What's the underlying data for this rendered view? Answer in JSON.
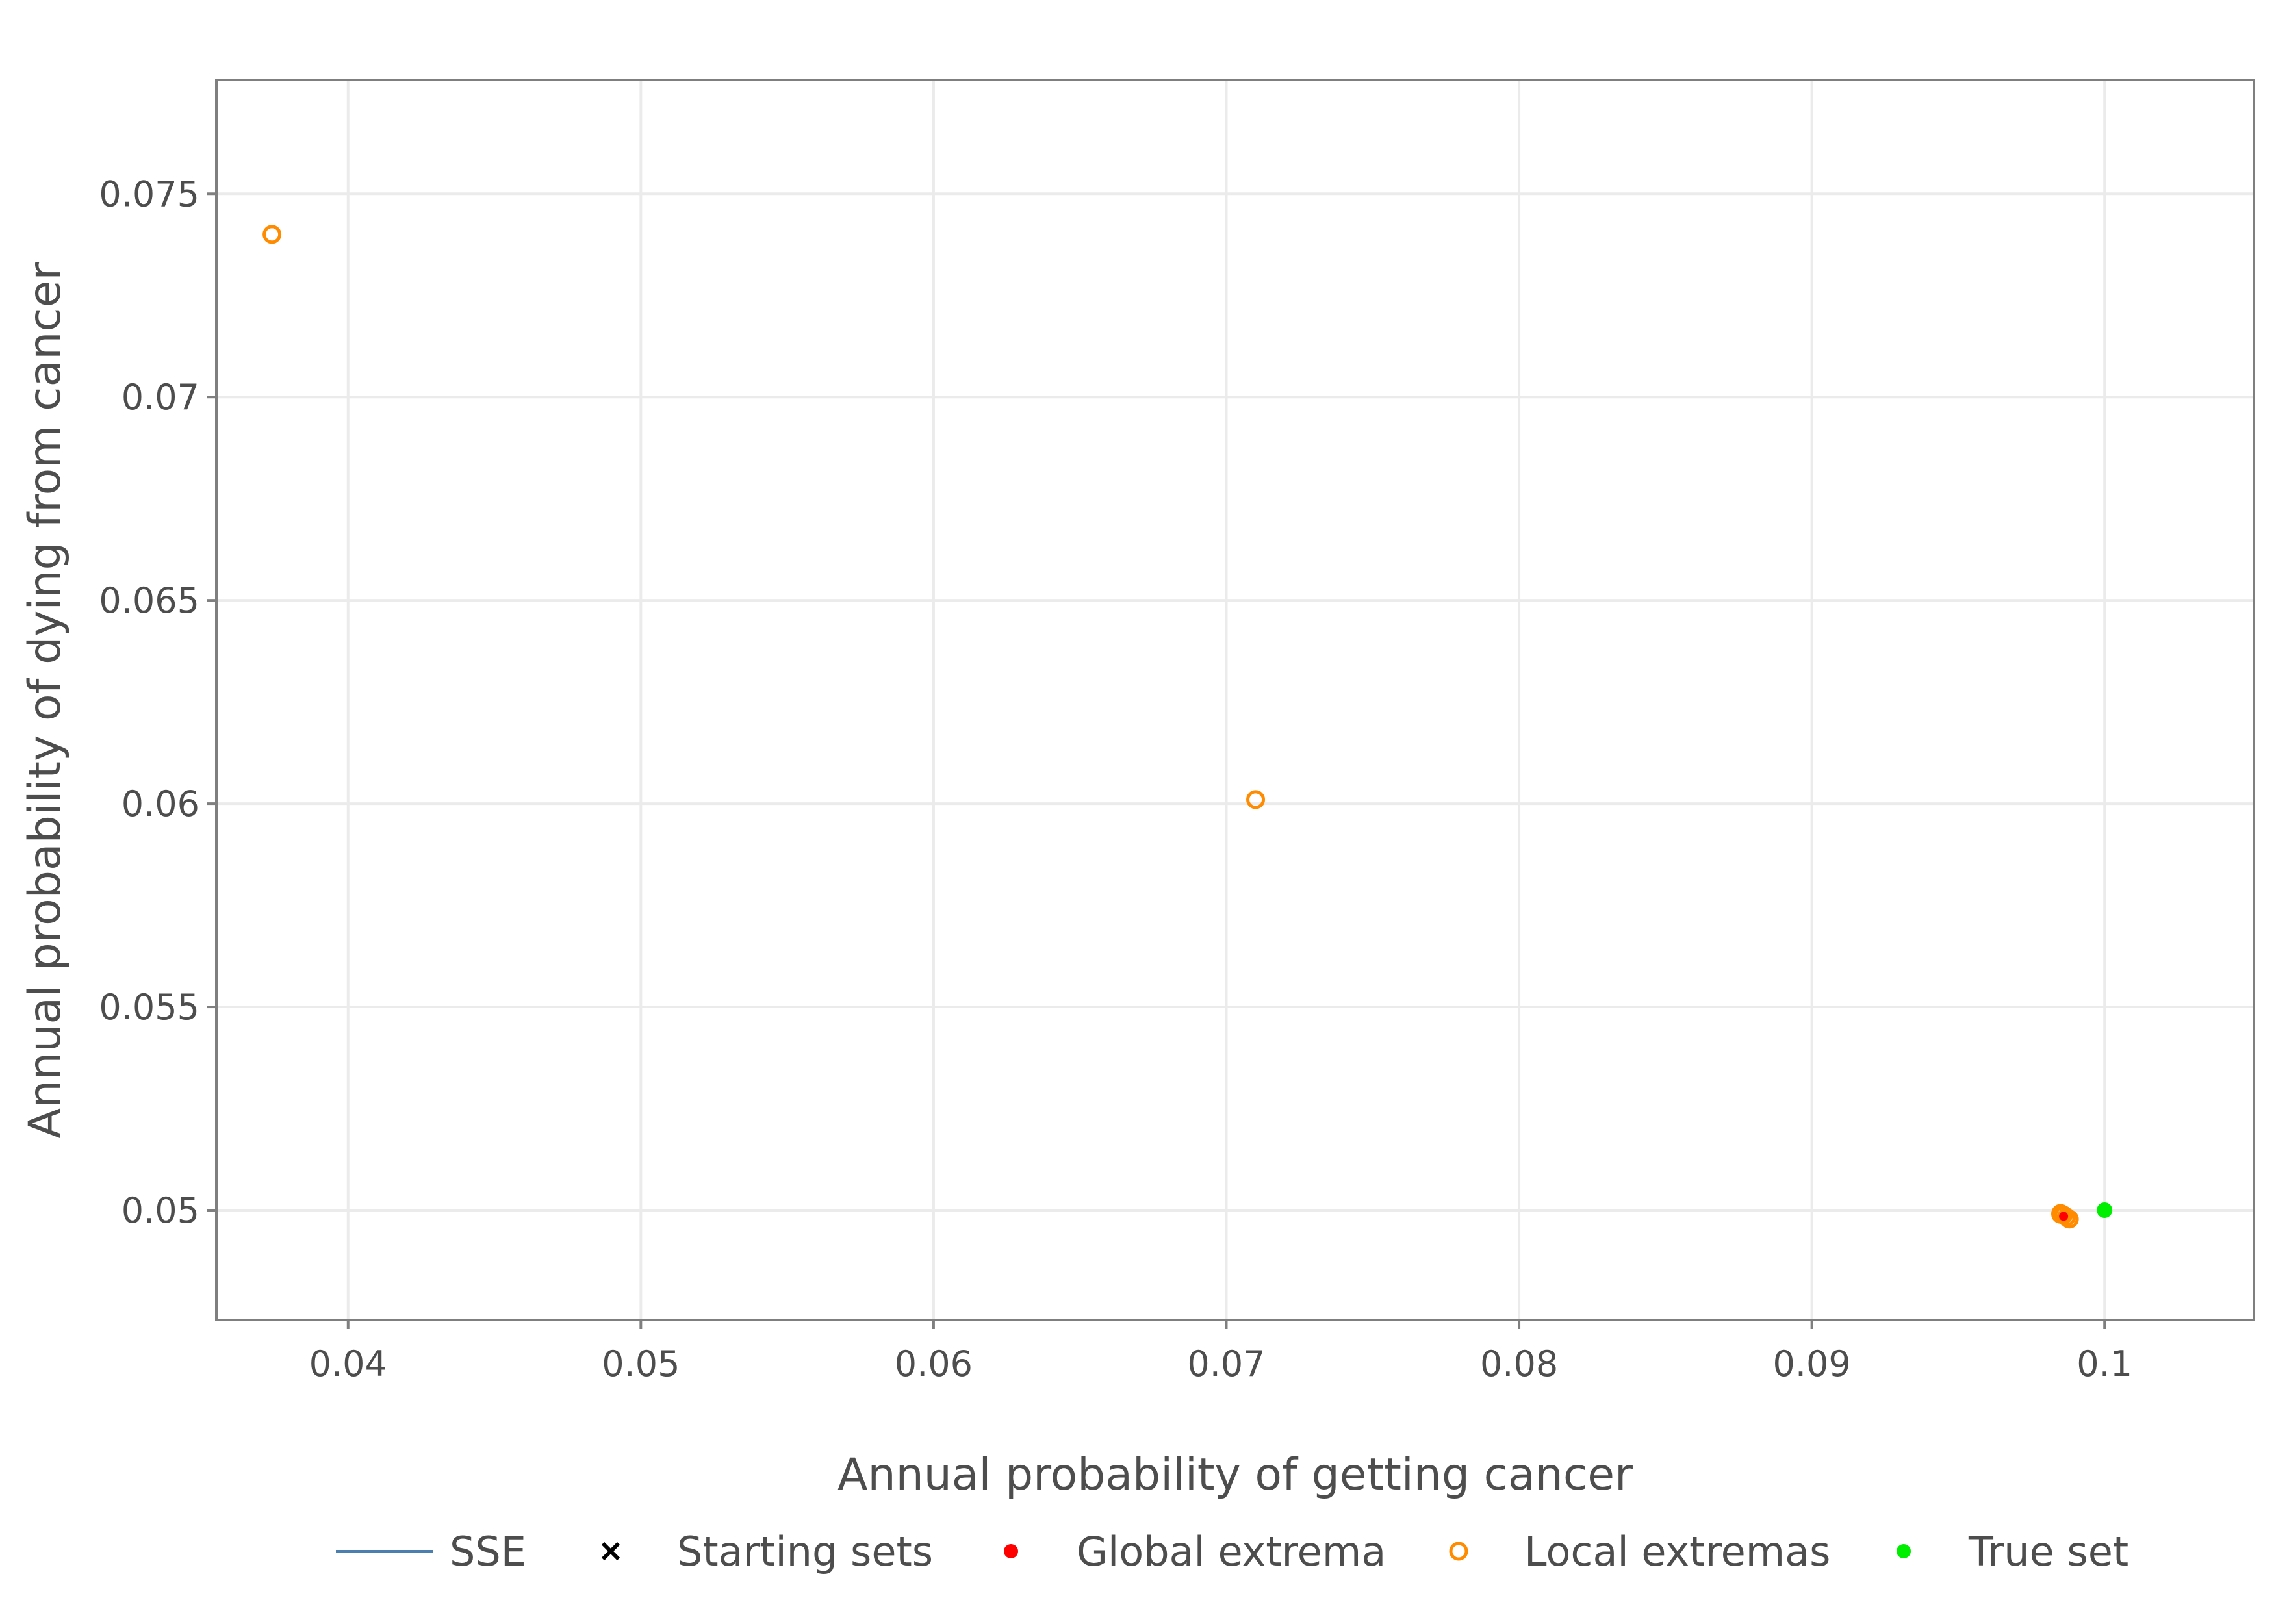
{
  "chart_data": {
    "type": "scatter",
    "title": "",
    "xlabel": "Annual probability of getting cancer",
    "ylabel": "Annual probability of dying from cancer",
    "xlim": [
      0.0355,
      0.1051
    ],
    "ylim": [
      0.0473,
      0.0778
    ],
    "grid": true,
    "legend_position": "bottom",
    "x_ticks": [
      0.04,
      0.05,
      0.06,
      0.07,
      0.08,
      0.09,
      0.1
    ],
    "x_tick_labels": [
      "0.04",
      "0.05",
      "0.06",
      "0.07",
      "0.08",
      "0.09",
      "0.1"
    ],
    "y_ticks": [
      0.05,
      0.055,
      0.06,
      0.065,
      0.07,
      0.075
    ],
    "y_tick_labels": [
      "0.05",
      "0.055",
      "0.06",
      "0.065",
      "0.07",
      "0.075"
    ],
    "series": [
      {
        "name": "SSE",
        "kind": "line",
        "color": "#4a7fb0",
        "points": []
      },
      {
        "name": "Starting sets",
        "kind": "cross",
        "color": "#000000",
        "points": []
      },
      {
        "name": "Global extrema",
        "kind": "filled-dot",
        "color": "#ff0000",
        "points": [
          {
            "x": 0.0986,
            "y": 0.04985
          }
        ]
      },
      {
        "name": "Local extremas",
        "kind": "open-circle",
        "color": "#ff8c00",
        "points": [
          {
            "x": 0.0374,
            "y": 0.074
          },
          {
            "x": 0.071,
            "y": 0.0601
          },
          {
            "x": 0.0985,
            "y": 0.04992
          },
          {
            "x": 0.0986,
            "y": 0.04988
          },
          {
            "x": 0.0987,
            "y": 0.04983
          },
          {
            "x": 0.0988,
            "y": 0.04978
          },
          {
            "x": 0.0985,
            "y": 0.0499
          }
        ]
      },
      {
        "name": "True set",
        "kind": "filled-dot",
        "color": "#00ee00",
        "points": [
          {
            "x": 0.1,
            "y": 0.05
          }
        ]
      }
    ]
  }
}
